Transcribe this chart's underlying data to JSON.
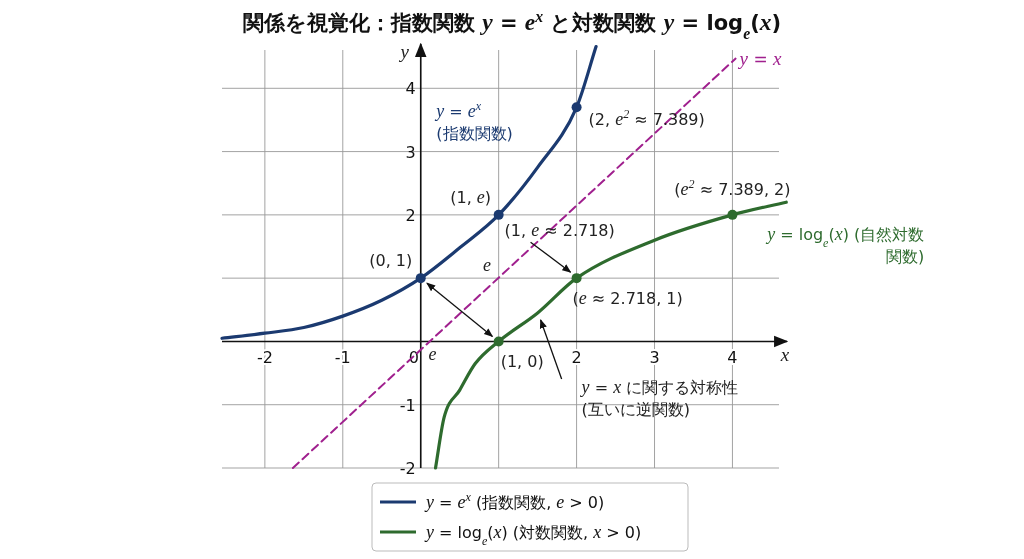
{
  "chart_data": {
    "type": "line",
    "title": "関係を視覚化：指数関数 *y* = *e*$^{x}$ と対数関数 *y* = log$_{e}$(*x*)",
    "xlabel": "x",
    "ylabel": "y",
    "xlim": [
      -2.55,
      4.7
    ],
    "ylim": [
      -2,
      4.7
    ],
    "xticks": [
      -2,
      -1,
      0,
      {
        "value": 1,
        "label": null
      },
      2,
      3,
      4
    ],
    "yticks": [
      -2,
      -1,
      {
        "value": 1,
        "label": null
      },
      2,
      3,
      4
    ],
    "grid": true,
    "legend": "bottom",
    "series": [
      {
        "name": "*y* = *e*$^{x}$ (指数関数, *e* > 0)",
        "color": "#1b3a70",
        "x": [
          -2.55,
          -2,
          -1.5,
          -1,
          -0.5,
          0,
          0.5,
          1,
          1.5,
          2,
          2.25
        ],
        "values": [
          0.05,
          0.13,
          0.22,
          0.4,
          0.65,
          1,
          1.48,
          2,
          2.75,
          3.7,
          4.66
        ]
      },
      {
        "name": "*y* = log$_{e}$(*x*) (対数関数, *x* > 0)",
        "color": "#2e6b2e",
        "x": [
          0.19,
          0.3,
          0.5,
          0.7,
          1,
          1.5,
          2,
          3,
          4,
          4.69
        ],
        "values": [
          -2,
          -1.2,
          -0.77,
          -0.35,
          0,
          0.45,
          1,
          1.6,
          2,
          2.2
        ]
      },
      {
        "name": "*y* = *x*",
        "color": "#a0208e",
        "line_style": "dashed",
        "x": [
          -1.64,
          4.04
        ],
        "values": [
          -2,
          4.47
        ]
      },
      {
        "type": "scatter",
        "marker": "circle",
        "color": "#1b3a70",
        "x": [
          0,
          1,
          2
        ],
        "values": [
          1,
          2,
          3.7
        ]
      },
      {
        "type": "scatter",
        "marker": "circle",
        "color": "#2e6b2e",
        "x": [
          1,
          2,
          4
        ],
        "values": [
          0,
          1,
          2
        ]
      }
    ],
    "annotations": [
      {
        "text": "(0, 1)",
        "x": 0,
        "y": 1
      },
      {
        "text": "(1, *e*)",
        "x": 1,
        "y": 2
      },
      {
        "text": "(2, *e*$^{2}$ ≈ 7.389)",
        "x": 2,
        "y": 3.7
      },
      {
        "text": "(1, *e* ≈ 2.718)",
        "x": 2,
        "y": 1
      },
      {
        "text": "(1, 0)",
        "x": 1,
        "y": 0
      },
      {
        "text": "(*e* ≈ 2.718, 1)",
        "x": 2,
        "y": 1
      },
      {
        "text": "(*e*$^{2}$ ≈ 7.389, 2)",
        "x": 4,
        "y": 2
      },
      "*y* = *e*$^{x}$\n(指数関数)",
      {
        "text": "*y* = log$_{e}$(*x*) (自然対数関数)",
        "x": 4.69,
        "y": 2.2
      },
      {
        "text": "*y* = *x* に関する対称性\n(互いに逆関数)",
        "x": 1.5,
        "y": 0.45
      },
      "*e*",
      "*e*"
    ]
  }
}
